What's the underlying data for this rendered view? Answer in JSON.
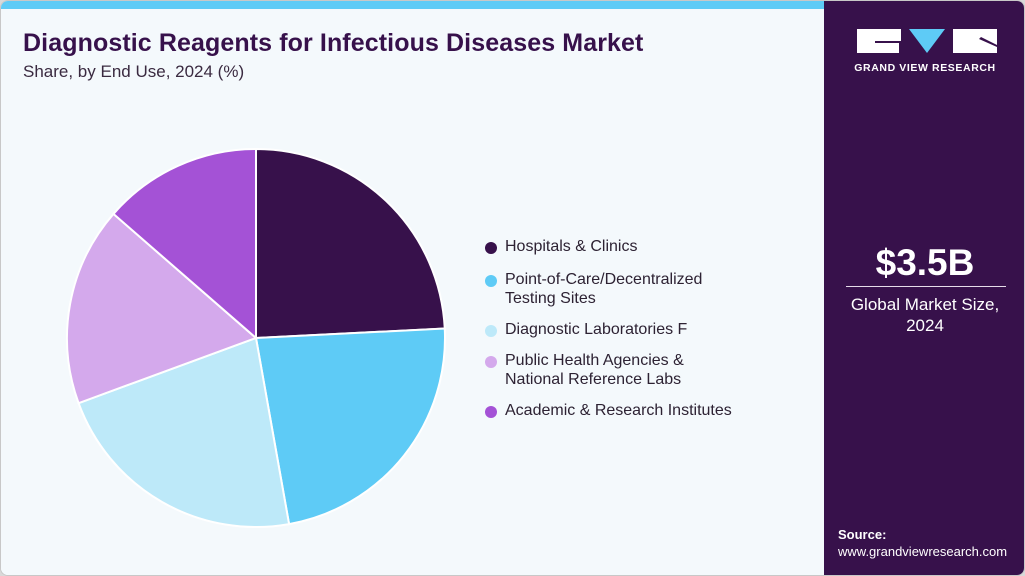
{
  "header": {
    "title": "Diagnostic Reagents for Infectious Diseases Market",
    "subtitle": "Share, by End Use, 2024 (%)"
  },
  "brand": {
    "logo_text": "GRAND VIEW RESEARCH",
    "colors": {
      "panel": "#37114b",
      "accent": "#5ecbf6"
    }
  },
  "summary": {
    "market_value": "$3.5B",
    "market_label_line1": "Global Market Size,",
    "market_label_line2": "2024"
  },
  "source": {
    "label": "Source:",
    "url": "www.grandviewresearch.com"
  },
  "legend": {
    "items": [
      {
        "label_line1": "Hospitals & Clinics",
        "label_line2": "",
        "color": "#37114b"
      },
      {
        "label_line1": "Point-of-Care/Decentralized",
        "label_line2": "Testing Sites",
        "color": "#5ecbf6"
      },
      {
        "label_line1": "Diagnostic Laboratories F",
        "label_line2": "",
        "color": "#bde9f9"
      },
      {
        "label_line1": "Public Health Agencies &",
        "label_line2": "National Reference Labs",
        "color": "#d4a9ec"
      },
      {
        "label_line1": "Academic & Research Institutes",
        "label_line2": "",
        "color": "#a452d6"
      }
    ]
  },
  "chart_data": {
    "type": "pie",
    "title": "Diagnostic Reagents for Infectious Diseases Market",
    "subtitle": "Share, by End Use, 2024 (%)",
    "categories": [
      "Hospitals & Clinics",
      "Point-of-Care/Decentralized Testing Sites",
      "Diagnostic Laboratories F",
      "Public Health Agencies & National Reference Labs",
      "Academic & Research Institutes"
    ],
    "values": [
      24.2,
      23.0,
      22.2,
      17.0,
      13.6
    ],
    "colors": [
      "#37114b",
      "#5ecbf6",
      "#bde9f9",
      "#d4a9ec",
      "#a452d6"
    ],
    "start_angle_deg": 0,
    "direction": "clockwise",
    "legend_position": "right",
    "data_labels": false
  }
}
